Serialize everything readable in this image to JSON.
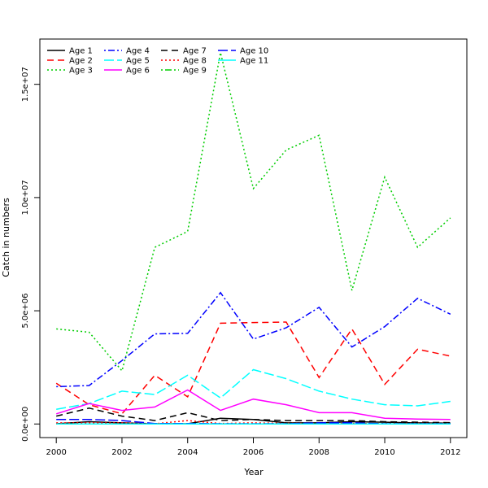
{
  "chart_data": {
    "type": "line",
    "title": "",
    "xlabel": "Year",
    "ylabel": "Catch in numbers",
    "xlim": [
      1999.5,
      2012.5
    ],
    "ylim": [
      -600000,
      17000000
    ],
    "x_ticks": [
      2000,
      2002,
      2004,
      2006,
      2008,
      2010,
      2012
    ],
    "x_tick_labels": [
      "2000",
      "2002",
      "2004",
      "2006",
      "2008",
      "2010",
      "2012"
    ],
    "y_ticks": [
      0,
      5000000,
      10000000,
      15000000
    ],
    "y_tick_labels": [
      "0.0e+00",
      "5.0e+06",
      "1.0e+07",
      "1.5e+07"
    ],
    "grid": false,
    "legend_position": "top-left",
    "legend_columns": 4,
    "x": [
      2000,
      2001,
      2002,
      2003,
      2004,
      2005,
      2006,
      2007,
      2008,
      2009,
      2010,
      2011,
      2012
    ],
    "series": [
      {
        "name": "Age 1",
        "color": "#000000",
        "dash": "solid",
        "values": [
          10000,
          100000,
          50000,
          10000,
          10000,
          250000,
          200000,
          50000,
          50000,
          100000,
          80000,
          50000,
          40000
        ]
      },
      {
        "name": "Age 2",
        "color": "#ff0000",
        "dash": "dashed",
        "values": [
          1800000,
          850000,
          450000,
          2150000,
          1200000,
          4450000,
          4480000,
          4500000,
          2050000,
          4200000,
          1750000,
          3300000,
          3000000
        ]
      },
      {
        "name": "Age 3",
        "color": "#00cd00",
        "dash": "dotted",
        "values": [
          4200000,
          4050000,
          2350000,
          7800000,
          8500000,
          16400000,
          10400000,
          12100000,
          12750000,
          5900000,
          10900000,
          7800000,
          9100000
        ]
      },
      {
        "name": "Age 4",
        "color": "#0000ff",
        "dash": "dotdash",
        "values": [
          1650000,
          1700000,
          2800000,
          3980000,
          4000000,
          5800000,
          3750000,
          4250000,
          5150000,
          3400000,
          4300000,
          5550000,
          4850000
        ]
      },
      {
        "name": "Age 5",
        "color": "#00ffff",
        "dash": "longdash",
        "values": [
          650000,
          900000,
          1450000,
          1300000,
          2150000,
          1150000,
          2400000,
          2000000,
          1450000,
          1100000,
          850000,
          800000,
          1000000
        ]
      },
      {
        "name": "Age 6",
        "color": "#ff00ff",
        "dash": "solid",
        "values": [
          450000,
          900000,
          600000,
          750000,
          1500000,
          600000,
          1100000,
          850000,
          500000,
          500000,
          250000,
          220000,
          200000
        ]
      },
      {
        "name": "Age 7",
        "color": "#000000",
        "dash": "dashed",
        "values": [
          350000,
          700000,
          350000,
          150000,
          500000,
          150000,
          200000,
          150000,
          150000,
          150000,
          100000,
          80000,
          60000
        ]
      },
      {
        "name": "Age 8",
        "color": "#ff0000",
        "dash": "dotted",
        "values": [
          50000,
          50000,
          50000,
          10000,
          150000,
          20000,
          50000,
          30000,
          30000,
          20000,
          20000,
          30000,
          20000
        ]
      },
      {
        "name": "Age 9",
        "color": "#00cd00",
        "dash": "dotdash",
        "values": [
          5000,
          5000,
          5000,
          5000,
          5000,
          5000,
          5000,
          5000,
          5000,
          5000,
          5000,
          5000,
          5000
        ]
      },
      {
        "name": "Age 10",
        "color": "#0000ff",
        "dash": "longdash",
        "values": [
          200000,
          200000,
          150000,
          20000,
          20000,
          10000,
          10000,
          10000,
          50000,
          50000,
          10000,
          10000,
          10000
        ]
      },
      {
        "name": "Age 11",
        "color": "#00ffff",
        "dash": "solid",
        "values": [
          5000,
          5000,
          5000,
          5000,
          5000,
          5000,
          5000,
          5000,
          5000,
          5000,
          5000,
          5000,
          5000
        ]
      }
    ]
  }
}
